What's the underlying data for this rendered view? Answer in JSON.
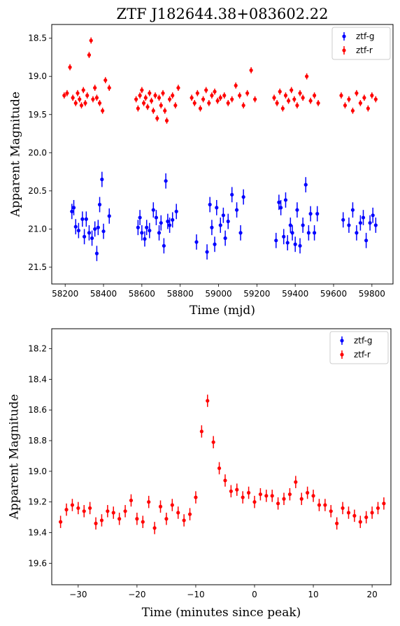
{
  "title": "ZTF J182644.38+083602.22",
  "colors": {
    "ztf-g": "#0000ff",
    "ztf-r": "#ff0000"
  },
  "chart_data": [
    {
      "type": "scatter",
      "xlabel": "Time (mjd)",
      "ylabel": "Apparent Magnitude",
      "xlim": [
        58130,
        59910
      ],
      "ylim": [
        21.72,
        18.32
      ],
      "y_inverted": true,
      "xticks": [
        58200,
        58400,
        58600,
        58800,
        59000,
        59200,
        59400,
        59600,
        59800
      ],
      "yticks": [
        18.5,
        19.0,
        19.5,
        20.0,
        20.5,
        21.0,
        21.5
      ],
      "legend": {
        "position": "top-right",
        "entries": [
          "ztf-g",
          "ztf-r"
        ]
      },
      "series": [
        {
          "name": "ztf-g",
          "err": 0.1,
          "x": [
            58235,
            58245,
            58255,
            58270,
            58290,
            58300,
            58310,
            58325,
            58340,
            58355,
            58365,
            58372,
            58380,
            58392,
            58400,
            58430,
            58580,
            58590,
            58600,
            58615,
            58625,
            58640,
            58660,
            58675,
            58690,
            58700,
            58715,
            58725,
            58735,
            58745,
            58760,
            58780,
            58885,
            58940,
            58955,
            58965,
            58980,
            58990,
            59010,
            59025,
            59035,
            59050,
            59070,
            59095,
            59115,
            59130,
            59300,
            59315,
            59325,
            59340,
            59350,
            59360,
            59375,
            59385,
            59400,
            59410,
            59425,
            59440,
            59455,
            59470,
            59480,
            59500,
            59515,
            59650,
            59680,
            59700,
            59720,
            59740,
            59755,
            59770,
            59790,
            59805,
            59820
          ],
          "y": [
            20.77,
            20.72,
            20.97,
            21.02,
            20.87,
            21.1,
            20.87,
            21.05,
            21.12,
            21.0,
            21.32,
            20.98,
            20.68,
            20.35,
            21.03,
            20.83,
            20.98,
            20.85,
            21.05,
            21.13,
            20.98,
            21.02,
            20.75,
            20.85,
            21.05,
            20.92,
            21.22,
            20.37,
            20.9,
            20.95,
            20.88,
            20.77,
            21.17,
            21.3,
            20.68,
            20.98,
            21.2,
            20.72,
            20.95,
            20.82,
            21.12,
            20.9,
            20.55,
            20.75,
            21.05,
            20.58,
            21.15,
            20.65,
            20.72,
            21.1,
            20.62,
            21.18,
            20.95,
            21.05,
            21.2,
            20.75,
            21.22,
            20.95,
            20.42,
            21.05,
            20.8,
            21.05,
            20.8,
            20.88,
            20.95,
            20.75,
            21.05,
            20.92,
            20.85,
            21.15,
            20.92,
            20.82,
            20.95
          ]
        },
        {
          "name": "ztf-r",
          "err": 0.04,
          "x": [
            58195,
            58210,
            58225,
            58240,
            58255,
            58265,
            58275,
            58285,
            58295,
            58305,
            58315,
            58325,
            58335,
            58345,
            58355,
            58365,
            58380,
            58395,
            58410,
            58430,
            58570,
            58580,
            58590,
            58600,
            58610,
            58620,
            58630,
            58640,
            58650,
            58660,
            58670,
            58680,
            58690,
            58700,
            58710,
            58720,
            58730,
            58745,
            58760,
            58775,
            58790,
            58860,
            58875,
            58890,
            58905,
            58920,
            58935,
            58950,
            58965,
            58980,
            58995,
            59010,
            59030,
            59050,
            59070,
            59090,
            59110,
            59130,
            59150,
            59170,
            59190,
            59290,
            59305,
            59320,
            59335,
            59350,
            59365,
            59380,
            59395,
            59410,
            59425,
            59440,
            59460,
            59480,
            59500,
            59520,
            59640,
            59660,
            59680,
            59700,
            59720,
            59740,
            59760,
            59780,
            59800,
            59820
          ],
          "y": [
            19.25,
            19.22,
            18.88,
            19.28,
            19.35,
            19.22,
            19.3,
            19.38,
            19.18,
            19.35,
            19.25,
            18.72,
            18.53,
            19.3,
            19.15,
            19.28,
            19.35,
            19.45,
            19.05,
            19.15,
            19.3,
            19.42,
            19.25,
            19.18,
            19.35,
            19.28,
            19.4,
            19.22,
            19.32,
            19.45,
            19.25,
            19.55,
            19.28,
            19.38,
            19.22,
            19.45,
            19.58,
            19.3,
            19.25,
            19.38,
            19.15,
            19.28,
            19.35,
            19.22,
            19.42,
            19.3,
            19.18,
            19.35,
            19.25,
            19.2,
            19.32,
            19.28,
            19.25,
            19.35,
            19.3,
            19.12,
            19.25,
            19.38,
            19.22,
            18.92,
            19.3,
            19.28,
            19.35,
            19.2,
            19.42,
            19.25,
            19.32,
            19.18,
            19.3,
            19.38,
            19.22,
            19.28,
            19.0,
            19.32,
            19.25,
            19.35,
            19.25,
            19.38,
            19.3,
            19.45,
            19.22,
            19.35,
            19.28,
            19.42,
            19.25,
            19.3
          ]
        }
      ]
    },
    {
      "type": "scatter",
      "xlabel": "Time (minutes since peak)",
      "ylabel": "Apparent Magnitude",
      "xlim": [
        -34.5,
        23.2
      ],
      "ylim": [
        19.74,
        18.07
      ],
      "y_inverted": true,
      "xticks": [
        -30,
        -20,
        -10,
        0,
        10,
        20
      ],
      "yticks": [
        18.2,
        18.4,
        18.6,
        18.8,
        19.0,
        19.2,
        19.4,
        19.6
      ],
      "legend": {
        "position": "top-right",
        "entries": [
          "ztf-g",
          "ztf-r"
        ]
      },
      "series": [
        {
          "name": "ztf-g",
          "err": 0.04,
          "x": [],
          "y": []
        },
        {
          "name": "ztf-r",
          "err": 0.04,
          "x": [
            -33,
            -32,
            -31,
            -30,
            -29,
            -28,
            -27,
            -26,
            -25,
            -24,
            -23,
            -22,
            -21,
            -20,
            -19,
            -18,
            -17,
            -16,
            -15,
            -14,
            -13,
            -12,
            -11,
            -10,
            -9,
            -8,
            -7,
            -6,
            -5,
            -4,
            -3,
            -2,
            -1,
            0,
            1,
            2,
            3,
            4,
            5,
            6,
            7,
            8,
            9,
            10,
            11,
            12,
            13,
            14,
            15,
            16,
            17,
            18,
            19,
            20,
            21,
            22
          ],
          "y": [
            19.33,
            19.25,
            19.22,
            19.24,
            19.26,
            19.24,
            19.34,
            19.32,
            19.26,
            19.27,
            19.31,
            19.26,
            19.19,
            19.31,
            19.33,
            19.2,
            19.37,
            19.23,
            19.31,
            19.22,
            19.27,
            19.32,
            19.28,
            19.17,
            18.74,
            18.54,
            18.81,
            18.98,
            19.06,
            19.13,
            19.12,
            19.17,
            19.14,
            19.2,
            19.15,
            19.16,
            19.16,
            19.21,
            19.18,
            19.15,
            19.07,
            19.18,
            19.14,
            19.16,
            19.22,
            19.22,
            19.26,
            19.34,
            19.24,
            19.27,
            19.29,
            19.33,
            19.3,
            19.27,
            19.24,
            19.21
          ]
        }
      ]
    }
  ]
}
